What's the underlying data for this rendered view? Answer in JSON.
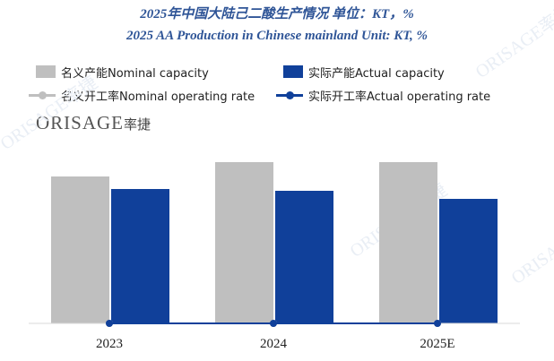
{
  "title_cn": "2025年中国大陆己二酸生产情况  单位：KT，%",
  "title_en": "2025 AA Production in Chinese mainland Unit: KT, %",
  "logo": {
    "text": "ORISAGE",
    "cn": "率捷"
  },
  "watermark": "ORISAGE率捷",
  "colors": {
    "nominal_capacity": "#bfbfbf",
    "actual_capacity": "#10409a",
    "nominal_rate": "#bfbfbf",
    "actual_rate": "#10409a",
    "title": "#2f5597"
  },
  "chart_data": {
    "type": "bar",
    "categories": [
      "2023",
      "2024",
      "2025E"
    ],
    "series": [
      {
        "name": "名义产能Nominal capacity",
        "kind": "bar",
        "values": [
          164,
          180,
          180
        ]
      },
      {
        "name": "实际产能Actual capacity",
        "kind": "bar",
        "values": [
          150,
          148,
          139
        ]
      },
      {
        "name": "名义开工率Nominal operating rate",
        "kind": "line",
        "values": [
          0,
          0,
          0
        ]
      },
      {
        "name": "实际开工率Actual operating rate",
        "kind": "line",
        "values": [
          0,
          0,
          0
        ]
      }
    ],
    "ylim": [
      0,
      200
    ],
    "legend": "top",
    "grid": false
  }
}
